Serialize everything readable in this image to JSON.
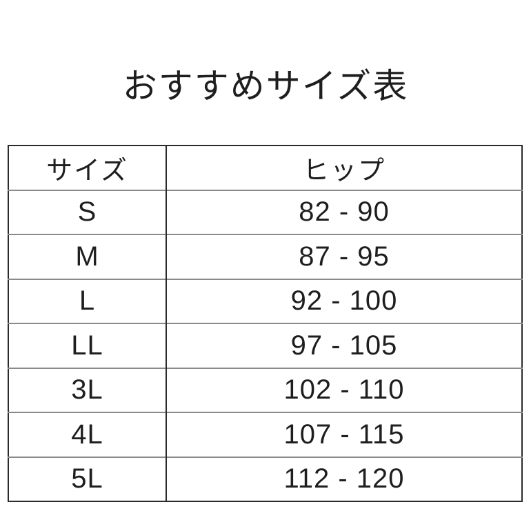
{
  "title": "おすすめサイズ表",
  "table": {
    "headers": {
      "size": "サイズ",
      "hip": "ヒップ"
    },
    "rows": [
      {
        "size": "S",
        "hip": "82 - 90"
      },
      {
        "size": "M",
        "hip": "87 - 95"
      },
      {
        "size": "L",
        "hip": "92 - 100"
      },
      {
        "size": "LL",
        "hip": "97 - 105"
      },
      {
        "size": "3L",
        "hip": "102 - 110"
      },
      {
        "size": "4L",
        "hip": "107 - 115"
      },
      {
        "size": "5L",
        "hip": "112 - 120"
      }
    ]
  },
  "colors": {
    "background": "#ffffff",
    "text": "#1e1e1e",
    "outer_border": "#2b2b2b",
    "column_divider": "#2b2b2b",
    "row_separator": "#8a8a8a"
  },
  "chart_data": {
    "type": "table",
    "title": "おすすめサイズ表",
    "columns": [
      "サイズ",
      "ヒップ"
    ],
    "rows": [
      [
        "S",
        "82-90"
      ],
      [
        "M",
        "87-95"
      ],
      [
        "L",
        "92-100"
      ],
      [
        "LL",
        "97-105"
      ],
      [
        "3L",
        "102-110"
      ],
      [
        "4L",
        "107-115"
      ],
      [
        "5L",
        "112-120"
      ]
    ]
  }
}
